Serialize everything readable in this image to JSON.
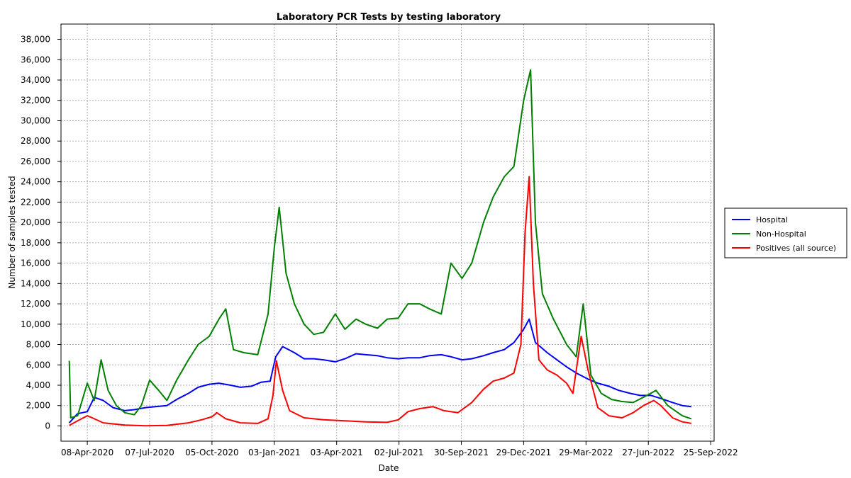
{
  "chart_data": {
    "type": "line",
    "title": "Laboratory PCR Tests by testing laboratory",
    "xlabel": "Date",
    "ylabel": "Number of samples tested",
    "x_type": "date",
    "xlim": [
      "2020-03-01",
      "2022-09-30"
    ],
    "ylim": [
      -1500,
      39500
    ],
    "x_ticks": [
      {
        "date": "2020-04-08",
        "label": "08-Apr-2020"
      },
      {
        "date": "2020-07-07",
        "label": "07-Jul-2020"
      },
      {
        "date": "2020-10-05",
        "label": "05-Oct-2020"
      },
      {
        "date": "2021-01-03",
        "label": "03-Jan-2021"
      },
      {
        "date": "2021-04-03",
        "label": "03-Apr-2021"
      },
      {
        "date": "2021-07-02",
        "label": "02-Jul-2021"
      },
      {
        "date": "2021-09-30",
        "label": "30-Sep-2021"
      },
      {
        "date": "2021-12-29",
        "label": "29-Dec-2021"
      },
      {
        "date": "2022-03-29",
        "label": "29-Mar-2022"
      },
      {
        "date": "2022-06-27",
        "label": "27-Jun-2022"
      },
      {
        "date": "2022-09-25",
        "label": "25-Sep-2022"
      }
    ],
    "y_ticks": [
      {
        "value": 0,
        "label": "0"
      },
      {
        "value": 2000,
        "label": "2,000"
      },
      {
        "value": 4000,
        "label": "4,000"
      },
      {
        "value": 6000,
        "label": "6,000"
      },
      {
        "value": 8000,
        "label": "8,000"
      },
      {
        "value": 10000,
        "label": "10,000"
      },
      {
        "value": 12000,
        "label": "12,000"
      },
      {
        "value": 14000,
        "label": "14,000"
      },
      {
        "value": 16000,
        "label": "16,000"
      },
      {
        "value": 18000,
        "label": "18,000"
      },
      {
        "value": 20000,
        "label": "20,000"
      },
      {
        "value": 22000,
        "label": "22,000"
      },
      {
        "value": 24000,
        "label": "24,000"
      },
      {
        "value": 26000,
        "label": "26,000"
      },
      {
        "value": 28000,
        "label": "28,000"
      },
      {
        "value": 30000,
        "label": "30,000"
      },
      {
        "value": 32000,
        "label": "32,000"
      },
      {
        "value": 34000,
        "label": "34,000"
      },
      {
        "value": 36000,
        "label": "36,000"
      },
      {
        "value": 38000,
        "label": "38,000"
      }
    ],
    "grid": true,
    "legend_position": "outside-right",
    "series": [
      {
        "name": "Hospital",
        "color": "#0000ff",
        "points": [
          [
            "2020-03-13",
            300
          ],
          [
            "2020-03-25",
            1200
          ],
          [
            "2020-04-08",
            1400
          ],
          [
            "2020-04-18",
            2800
          ],
          [
            "2020-05-01",
            2500
          ],
          [
            "2020-05-15",
            1800
          ],
          [
            "2020-06-01",
            1500
          ],
          [
            "2020-06-15",
            1600
          ],
          [
            "2020-07-01",
            1800
          ],
          [
            "2020-07-15",
            1900
          ],
          [
            "2020-08-01",
            2000
          ],
          [
            "2020-08-15",
            2600
          ],
          [
            "2020-09-01",
            3200
          ],
          [
            "2020-09-15",
            3800
          ],
          [
            "2020-10-01",
            4100
          ],
          [
            "2020-10-15",
            4200
          ],
          [
            "2020-11-01",
            4000
          ],
          [
            "2020-11-15",
            3800
          ],
          [
            "2020-12-01",
            3900
          ],
          [
            "2020-12-15",
            4300
          ],
          [
            "2020-12-28",
            4400
          ],
          [
            "2021-01-05",
            6800
          ],
          [
            "2021-01-15",
            7800
          ],
          [
            "2021-02-01",
            7200
          ],
          [
            "2021-02-15",
            6600
          ],
          [
            "2021-03-01",
            6600
          ],
          [
            "2021-03-15",
            6500
          ],
          [
            "2021-04-01",
            6300
          ],
          [
            "2021-04-15",
            6600
          ],
          [
            "2021-05-01",
            7100
          ],
          [
            "2021-05-15",
            7000
          ],
          [
            "2021-06-01",
            6900
          ],
          [
            "2021-06-15",
            6700
          ],
          [
            "2021-07-01",
            6600
          ],
          [
            "2021-07-15",
            6700
          ],
          [
            "2021-08-01",
            6700
          ],
          [
            "2021-08-15",
            6900
          ],
          [
            "2021-09-01",
            7000
          ],
          [
            "2021-09-15",
            6800
          ],
          [
            "2021-10-01",
            6500
          ],
          [
            "2021-10-15",
            6600
          ],
          [
            "2021-11-01",
            6900
          ],
          [
            "2021-11-15",
            7200
          ],
          [
            "2021-12-01",
            7500
          ],
          [
            "2021-12-15",
            8200
          ],
          [
            "2021-12-29",
            9500
          ],
          [
            "2022-01-06",
            10500
          ],
          [
            "2022-01-15",
            8200
          ],
          [
            "2022-02-01",
            7200
          ],
          [
            "2022-02-15",
            6500
          ],
          [
            "2022-03-01",
            5800
          ],
          [
            "2022-03-15",
            5200
          ],
          [
            "2022-04-01",
            4600
          ],
          [
            "2022-04-15",
            4200
          ],
          [
            "2022-05-01",
            3900
          ],
          [
            "2022-05-15",
            3500
          ],
          [
            "2022-06-01",
            3200
          ],
          [
            "2022-06-15",
            3000
          ],
          [
            "2022-07-01",
            3000
          ],
          [
            "2022-07-15",
            2700
          ],
          [
            "2022-08-01",
            2300
          ],
          [
            "2022-08-15",
            2000
          ],
          [
            "2022-08-28",
            1900
          ]
        ]
      },
      {
        "name": "Non-Hospital",
        "color": "#008000",
        "points": [
          [
            "2020-03-13",
            6400
          ],
          [
            "2020-03-15",
            800
          ],
          [
            "2020-03-25",
            1000
          ],
          [
            "2020-04-08",
            4200
          ],
          [
            "2020-04-18",
            2500
          ],
          [
            "2020-04-28",
            6500
          ],
          [
            "2020-05-08",
            3500
          ],
          [
            "2020-05-20",
            2000
          ],
          [
            "2020-06-01",
            1300
          ],
          [
            "2020-06-15",
            1100
          ],
          [
            "2020-06-25",
            2000
          ],
          [
            "2020-07-07",
            4500
          ],
          [
            "2020-07-20",
            3500
          ],
          [
            "2020-08-01",
            2500
          ],
          [
            "2020-08-15",
            4500
          ],
          [
            "2020-09-01",
            6500
          ],
          [
            "2020-09-15",
            8000
          ],
          [
            "2020-10-01",
            8800
          ],
          [
            "2020-10-15",
            10500
          ],
          [
            "2020-10-25",
            11500
          ],
          [
            "2020-11-05",
            7500
          ],
          [
            "2020-11-20",
            7200
          ],
          [
            "2020-12-10",
            7000
          ],
          [
            "2020-12-25",
            11000
          ],
          [
            "2021-01-03",
            17500
          ],
          [
            "2021-01-10",
            21500
          ],
          [
            "2021-01-20",
            15000
          ],
          [
            "2021-02-01",
            12000
          ],
          [
            "2021-02-15",
            10000
          ],
          [
            "2021-03-01",
            9000
          ],
          [
            "2021-03-15",
            9200
          ],
          [
            "2021-04-01",
            11000
          ],
          [
            "2021-04-15",
            9500
          ],
          [
            "2021-05-01",
            10500
          ],
          [
            "2021-05-15",
            10000
          ],
          [
            "2021-06-01",
            9600
          ],
          [
            "2021-06-15",
            10500
          ],
          [
            "2021-07-01",
            10600
          ],
          [
            "2021-07-15",
            12000
          ],
          [
            "2021-08-01",
            12000
          ],
          [
            "2021-08-15",
            11500
          ],
          [
            "2021-09-01",
            11000
          ],
          [
            "2021-09-15",
            16000
          ],
          [
            "2021-10-01",
            14500
          ],
          [
            "2021-10-15",
            16000
          ],
          [
            "2021-11-01",
            20000
          ],
          [
            "2021-11-15",
            22500
          ],
          [
            "2021-12-01",
            24500
          ],
          [
            "2021-12-15",
            25500
          ],
          [
            "2021-12-29",
            32000
          ],
          [
            "2022-01-08",
            35000
          ],
          [
            "2022-01-15",
            20000
          ],
          [
            "2022-01-25",
            13000
          ],
          [
            "2022-02-10",
            10500
          ],
          [
            "2022-03-01",
            8000
          ],
          [
            "2022-03-15",
            6800
          ],
          [
            "2022-03-25",
            12000
          ],
          [
            "2022-04-05",
            5000
          ],
          [
            "2022-04-20",
            3200
          ],
          [
            "2022-05-05",
            2600
          ],
          [
            "2022-05-20",
            2400
          ],
          [
            "2022-06-05",
            2300
          ],
          [
            "2022-06-25",
            3000
          ],
          [
            "2022-07-08",
            3500
          ],
          [
            "2022-07-25",
            2000
          ],
          [
            "2022-08-15",
            1000
          ],
          [
            "2022-08-28",
            700
          ]
        ]
      },
      {
        "name": "Positives (all source)",
        "color": "#ff0000",
        "points": [
          [
            "2020-03-13",
            50
          ],
          [
            "2020-03-25",
            500
          ],
          [
            "2020-04-08",
            1000
          ],
          [
            "2020-04-15",
            800
          ],
          [
            "2020-05-01",
            300
          ],
          [
            "2020-06-01",
            80
          ],
          [
            "2020-07-01",
            20
          ],
          [
            "2020-08-01",
            50
          ],
          [
            "2020-09-01",
            300
          ],
          [
            "2020-09-20",
            600
          ],
          [
            "2020-10-05",
            900
          ],
          [
            "2020-10-12",
            1300
          ],
          [
            "2020-10-25",
            700
          ],
          [
            "2020-11-15",
            300
          ],
          [
            "2020-12-10",
            250
          ],
          [
            "2020-12-25",
            700
          ],
          [
            "2021-01-01",
            3000
          ],
          [
            "2021-01-06",
            6400
          ],
          [
            "2021-01-15",
            3500
          ],
          [
            "2021-01-25",
            1500
          ],
          [
            "2021-02-15",
            800
          ],
          [
            "2021-03-15",
            600
          ],
          [
            "2021-04-15",
            500
          ],
          [
            "2021-05-15",
            400
          ],
          [
            "2021-06-15",
            350
          ],
          [
            "2021-07-01",
            600
          ],
          [
            "2021-07-15",
            1400
          ],
          [
            "2021-08-01",
            1700
          ],
          [
            "2021-08-20",
            1900
          ],
          [
            "2021-09-05",
            1500
          ],
          [
            "2021-09-25",
            1300
          ],
          [
            "2021-10-15",
            2300
          ],
          [
            "2021-11-01",
            3600
          ],
          [
            "2021-11-15",
            4400
          ],
          [
            "2021-12-01",
            4700
          ],
          [
            "2021-12-15",
            5200
          ],
          [
            "2021-12-25",
            8000
          ],
          [
            "2021-12-31",
            19000
          ],
          [
            "2022-01-06",
            24500
          ],
          [
            "2022-01-12",
            14000
          ],
          [
            "2022-01-20",
            6500
          ],
          [
            "2022-02-01",
            5500
          ],
          [
            "2022-02-15",
            5000
          ],
          [
            "2022-03-01",
            4200
          ],
          [
            "2022-03-10",
            3200
          ],
          [
            "2022-03-22",
            8800
          ],
          [
            "2022-04-01",
            5500
          ],
          [
            "2022-04-15",
            1800
          ],
          [
            "2022-05-01",
            1000
          ],
          [
            "2022-05-20",
            800
          ],
          [
            "2022-06-05",
            1300
          ],
          [
            "2022-06-20",
            2000
          ],
          [
            "2022-07-05",
            2500
          ],
          [
            "2022-07-15",
            2000
          ],
          [
            "2022-08-01",
            800
          ],
          [
            "2022-08-15",
            400
          ],
          [
            "2022-08-28",
            250
          ]
        ]
      }
    ]
  }
}
